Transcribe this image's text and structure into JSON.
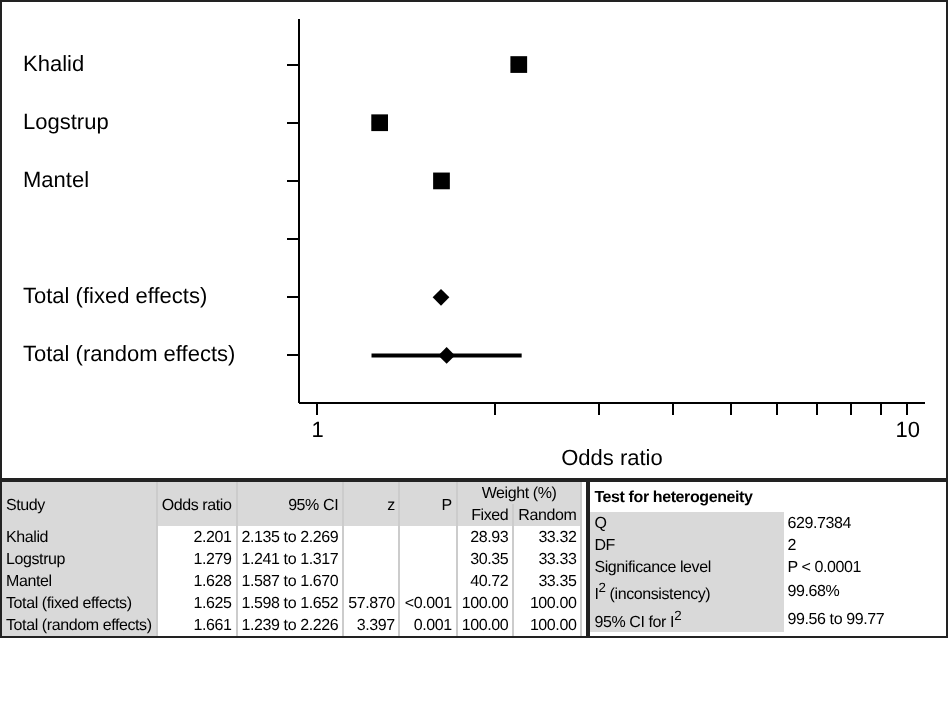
{
  "chart_data": {
    "type": "scatter",
    "orientation": "horizontal",
    "xlabel": "Odds ratio",
    "log": "x",
    "categories": [
      "Khalid",
      "Logstrup",
      "Mantel",
      null,
      "Total (fixed effects)",
      "Total (random effects)"
    ],
    "series": [
      {
        "color": "#000000",
        "marker": "square",
        "values": [
          2.201,
          1.279,
          1.628,
          null,
          null,
          null
        ],
        "errors": [
          [
            2.135,
            2.269
          ],
          [
            1.241,
            1.317
          ],
          [
            1.587,
            1.67
          ],
          null,
          null,
          null
        ]
      },
      {
        "color": "#000000",
        "marker": "diamond",
        "values": [
          null,
          null,
          null,
          null,
          1.625,
          1.661
        ],
        "errors": [
          null,
          null,
          null,
          null,
          [
            1.598,
            1.652
          ],
          [
            1.239,
            2.226
          ]
        ]
      }
    ],
    "xlim": [
      0.93,
      10.7
    ],
    "xticks": [
      1,
      {
        "value": 2,
        "label": null
      },
      {
        "value": 3,
        "label": null
      },
      {
        "value": 4,
        "label": null
      },
      {
        "value": 5,
        "label": null
      },
      {
        "value": 6,
        "label": null
      },
      {
        "value": 7,
        "label": null
      },
      {
        "value": 8,
        "label": null
      },
      {
        "value": 9,
        "label": null
      },
      10
    ],
    "annotations": [
      "Study",
      "Odds ratio",
      "95% CI",
      "z",
      "P",
      "Weight (%)",
      "Fixed",
      "Random",
      "Khalid",
      "2.201",
      "2.135 to 2.269",
      "28.93",
      "33.32",
      "Logstrup",
      "1.279",
      "1.241 to 1.317",
      "30.35",
      "33.33",
      "Mantel",
      "1.628",
      "1.587 to 1.670",
      "40.72",
      "33.35",
      "Total (fixed effects)",
      "1.625",
      "1.598 to 1.652",
      "57.870",
      "<0.001",
      "100.00",
      "100.00",
      "Total (random effects)",
      "1.661",
      "1.239 to 2.226",
      "3.397",
      "0.001",
      "100.00",
      "100.00",
      "Test for heterogeneity",
      "Q",
      "629.7384",
      "DF",
      "2",
      "Significance level",
      "P < 0.0001",
      "I$^{2}$ (inconsistency)",
      "99.68%",
      "95% CI for I$^{2}$",
      "99.56 to 99.77"
    ]
  }
}
